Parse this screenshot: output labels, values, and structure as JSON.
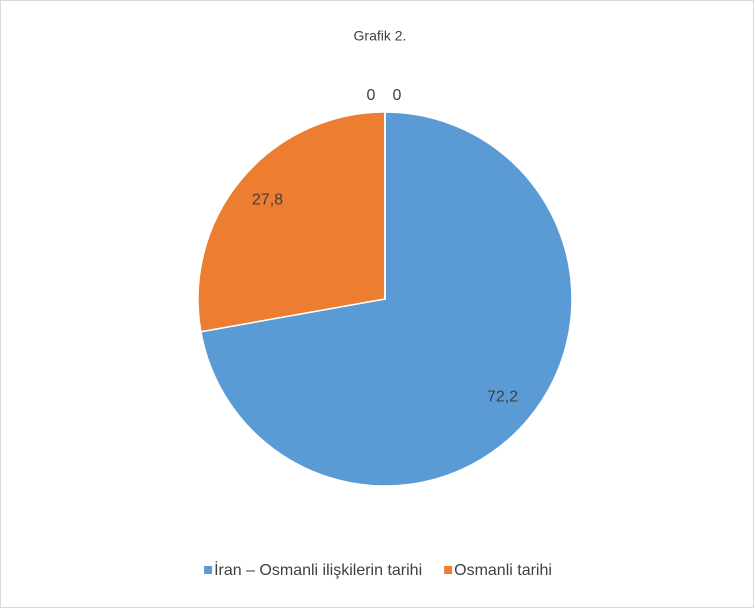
{
  "chart_data": {
    "type": "pie",
    "title": "Grafik  2.",
    "categories": [
      "İran – Osmanli ilişkilerin tarihi",
      "Osmanli tarihi",
      null,
      null
    ],
    "values": [
      72.2,
      27.8,
      0,
      0
    ],
    "value_labels": [
      "72,2",
      "27,8",
      "0",
      "0"
    ],
    "colors": [
      "#5b9bd5",
      "#ed7d31",
      "#a5a5a5",
      "#ffc000"
    ],
    "legend": "bottom"
  }
}
